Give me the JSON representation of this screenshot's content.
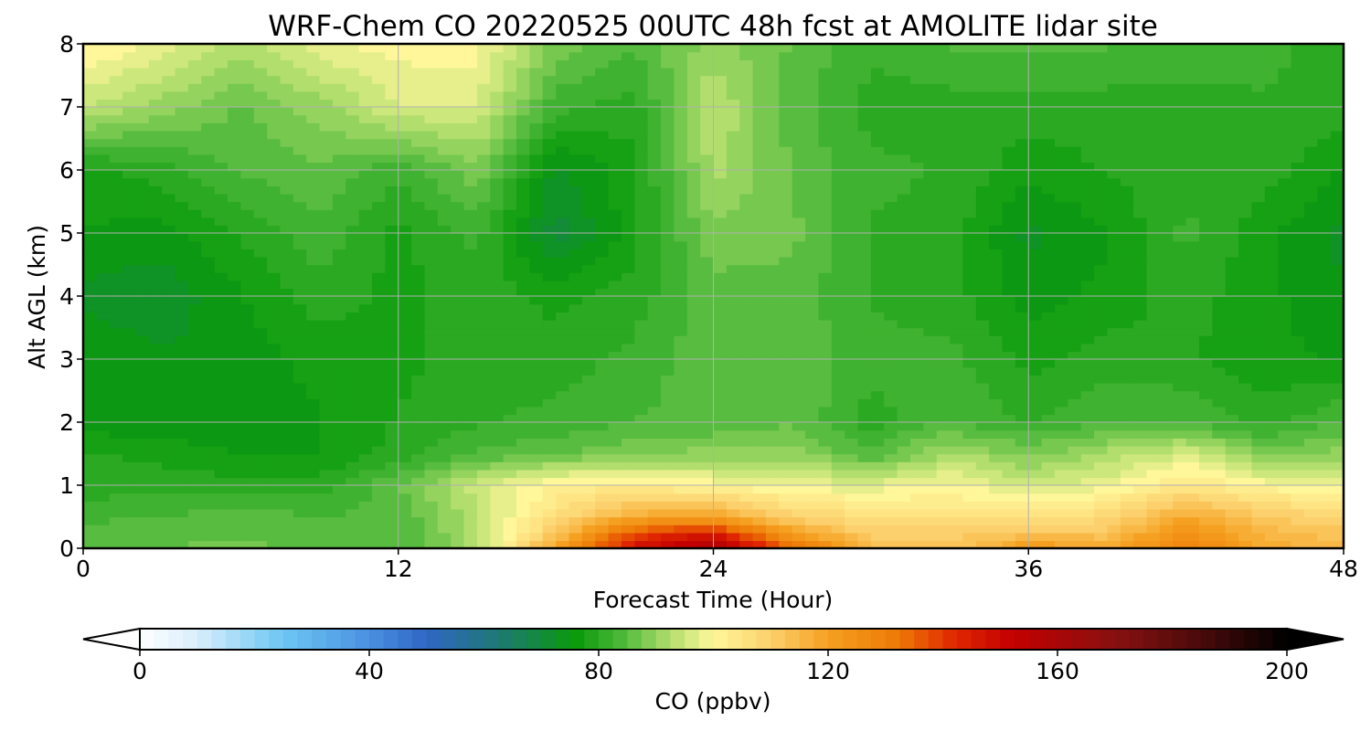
{
  "chart_data": {
    "type": "heatmap",
    "title": "WRF-Chem CO  20220525 00UTC 48h fcst at AMOLITE lidar site",
    "xlabel": "Forecast Time (Hour)",
    "ylabel": "Alt AGL (km)",
    "xlim": [
      0,
      48
    ],
    "ylim": [
      0,
      8
    ],
    "xticks": [
      "0",
      "12",
      "24",
      "36",
      "48"
    ],
    "yticks": [
      "0",
      "1",
      "2",
      "3",
      "4",
      "5",
      "6",
      "7",
      "8"
    ],
    "grid": true,
    "colorbar": {
      "label": "CO  (ppbv)",
      "min": 0,
      "max": 200,
      "ticks": [
        "0",
        "40",
        "80",
        "120",
        "160",
        "200"
      ],
      "extend": "both",
      "stops": [
        [
          0,
          "#ffffff"
        ],
        [
          10,
          "#d8eefc"
        ],
        [
          25,
          "#6cc6f2"
        ],
        [
          40,
          "#4a90e0"
        ],
        [
          50,
          "#2f66c4"
        ],
        [
          62,
          "#1f7878"
        ],
        [
          76,
          "#0a9a0a"
        ],
        [
          84,
          "#4cb83a"
        ],
        [
          93,
          "#b8e070"
        ],
        [
          100,
          "#fff79a"
        ],
        [
          110,
          "#fcd06c"
        ],
        [
          120,
          "#f5a020"
        ],
        [
          132,
          "#ee7a06"
        ],
        [
          142,
          "#e02800"
        ],
        [
          152,
          "#c40000"
        ],
        [
          170,
          "#881010"
        ],
        [
          185,
          "#4a0a0a"
        ],
        [
          200,
          "#000000"
        ]
      ]
    },
    "time_hours": [
      0,
      3,
      6,
      9,
      12,
      15,
      18,
      21,
      24,
      27,
      30,
      33,
      36,
      39,
      42,
      45,
      48
    ],
    "altitude_km": [
      0,
      0.25,
      0.5,
      1,
      1.5,
      2,
      3,
      4,
      5,
      6,
      7,
      8
    ],
    "values": [
      [
        86,
        86,
        87,
        85,
        84,
        92,
        120,
        148,
        160,
        135,
        115,
        112,
        122,
        118,
        130,
        118,
        115
      ],
      [
        84,
        86,
        86,
        85,
        84,
        92,
        112,
        138,
        145,
        120,
        110,
        110,
        112,
        112,
        125,
        115,
        112
      ],
      [
        83,
        84,
        85,
        84,
        84,
        93,
        106,
        118,
        120,
        110,
        106,
        105,
        105,
        108,
        118,
        112,
        108
      ],
      [
        80,
        80,
        80,
        80,
        86,
        95,
        102,
        103,
        100,
        98,
        97,
        100,
        95,
        98,
        105,
        100,
        98
      ],
      [
        79,
        78,
        76,
        76,
        80,
        84,
        86,
        88,
        90,
        90,
        84,
        92,
        88,
        92,
        96,
        88,
        90
      ],
      [
        75,
        74,
        75,
        76,
        79,
        81,
        82,
        84,
        84,
        86,
        80,
        84,
        81,
        84,
        84,
        80,
        84
      ],
      [
        76,
        74,
        75,
        77,
        78,
        80,
        80,
        82,
        86,
        86,
        82,
        82,
        78,
        80,
        79,
        77,
        76
      ],
      [
        73,
        72,
        76,
        80,
        78,
        80,
        78,
        80,
        85,
        85,
        81,
        80,
        75,
        77,
        80,
        77,
        74
      ],
      [
        76,
        75,
        79,
        83,
        78,
        82,
        70,
        78,
        88,
        87,
        81,
        80,
        73,
        76,
        82,
        77,
        73
      ],
      [
        78,
        80,
        84,
        86,
        82,
        88,
        73,
        78,
        92,
        86,
        82,
        81,
        77,
        79,
        80,
        80,
        76
      ],
      [
        94,
        90,
        86,
        90,
        96,
        96,
        82,
        80,
        94,
        85,
        80,
        80,
        80,
        80,
        80,
        81,
        80
      ],
      [
        102,
        98,
        92,
        98,
        100,
        100,
        88,
        84,
        90,
        86,
        82,
        84,
        84,
        84,
        83,
        82,
        80
      ]
    ]
  }
}
